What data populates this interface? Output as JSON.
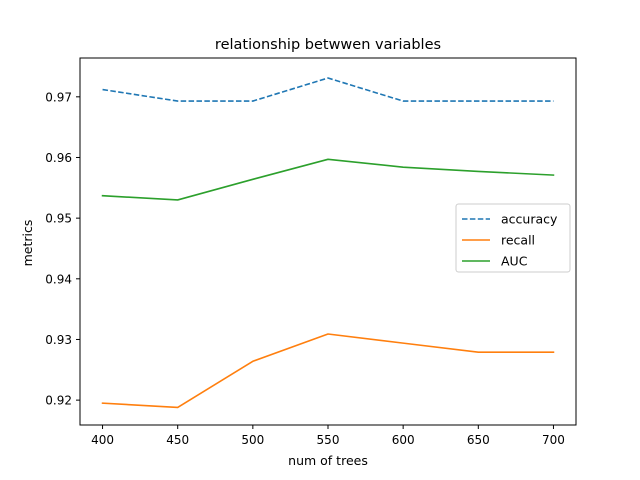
{
  "chart_data": {
    "type": "line",
    "title": "relationship betwwen variables",
    "xlabel": "num of trees",
    "ylabel": "metrics",
    "x": [
      400,
      450,
      500,
      550,
      600,
      650,
      700
    ],
    "xlim": [
      385,
      715
    ],
    "ylim": [
      0.9159,
      0.9764
    ],
    "xticks": [
      "400",
      "450",
      "500",
      "550",
      "600",
      "650",
      "700"
    ],
    "yticks": [
      "0.92",
      "0.93",
      "0.94",
      "0.95",
      "0.96",
      "0.97"
    ],
    "grid": false,
    "legend_position": "center-right",
    "series": [
      {
        "name": "accuracy",
        "color": "#1f77b4",
        "style": "dashed",
        "values": [
          0.9712,
          0.9693,
          0.9693,
          0.9731,
          0.9693,
          0.9693,
          0.9693
        ]
      },
      {
        "name": "recall",
        "color": "#ff7f0e",
        "style": "solid",
        "values": [
          0.9195,
          0.9188,
          0.9264,
          0.9309,
          0.9294,
          0.9279,
          0.9279
        ]
      },
      {
        "name": "AUC",
        "color": "#2ca02c",
        "style": "solid",
        "values": [
          0.9537,
          0.953,
          0.9564,
          0.9597,
          0.9584,
          0.9577,
          0.9571
        ]
      }
    ]
  }
}
